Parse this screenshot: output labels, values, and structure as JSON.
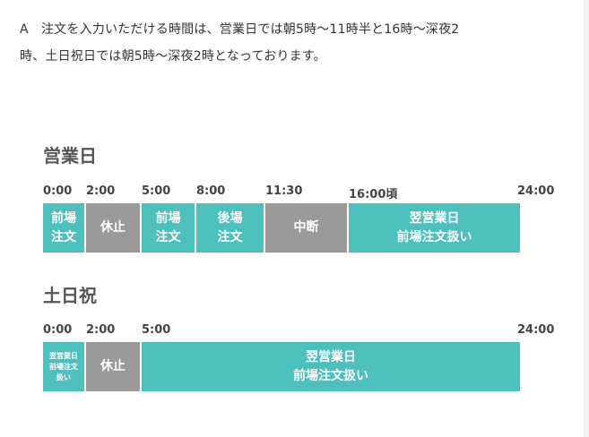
{
  "intro": {
    "line1": "A　注文を入力いただける時間は、営業日では朝5時～11時半と16時～深夜2",
    "line2": "時、土日祝日では朝5時～深夜2時となっております。"
  },
  "sections": [
    {
      "title": "営業日",
      "ticks": [
        "0:00",
        "2:00",
        "5:00",
        "8:00",
        "11:30",
        "16:00頃",
        "24:00"
      ],
      "segments": [
        {
          "label": "前場\n注文",
          "color": "#4dbfbd"
        },
        {
          "label": "休止",
          "color": "#9a9a9a"
        },
        {
          "label": "前場\n注文",
          "color": "#4dbfbd"
        },
        {
          "label": "後場\n注文",
          "color": "#4dbfbd"
        },
        {
          "label": "中断",
          "color": "#9a9a9a"
        },
        {
          "label": "翌営業日\n前場注文扱い",
          "color": "#4dbfbd"
        }
      ]
    },
    {
      "title": "土日祝",
      "ticks": [
        "0:00",
        "2:00",
        "5:00",
        "24:00"
      ],
      "segments": [
        {
          "label": "翌営業日\n前場注文\n扱い",
          "color": "#4dbfbd"
        },
        {
          "label": "休止",
          "color": "#9a9a9a"
        },
        {
          "label": "翌営業日\n前場注文扱い",
          "color": "#4dbfbd"
        }
      ]
    }
  ]
}
